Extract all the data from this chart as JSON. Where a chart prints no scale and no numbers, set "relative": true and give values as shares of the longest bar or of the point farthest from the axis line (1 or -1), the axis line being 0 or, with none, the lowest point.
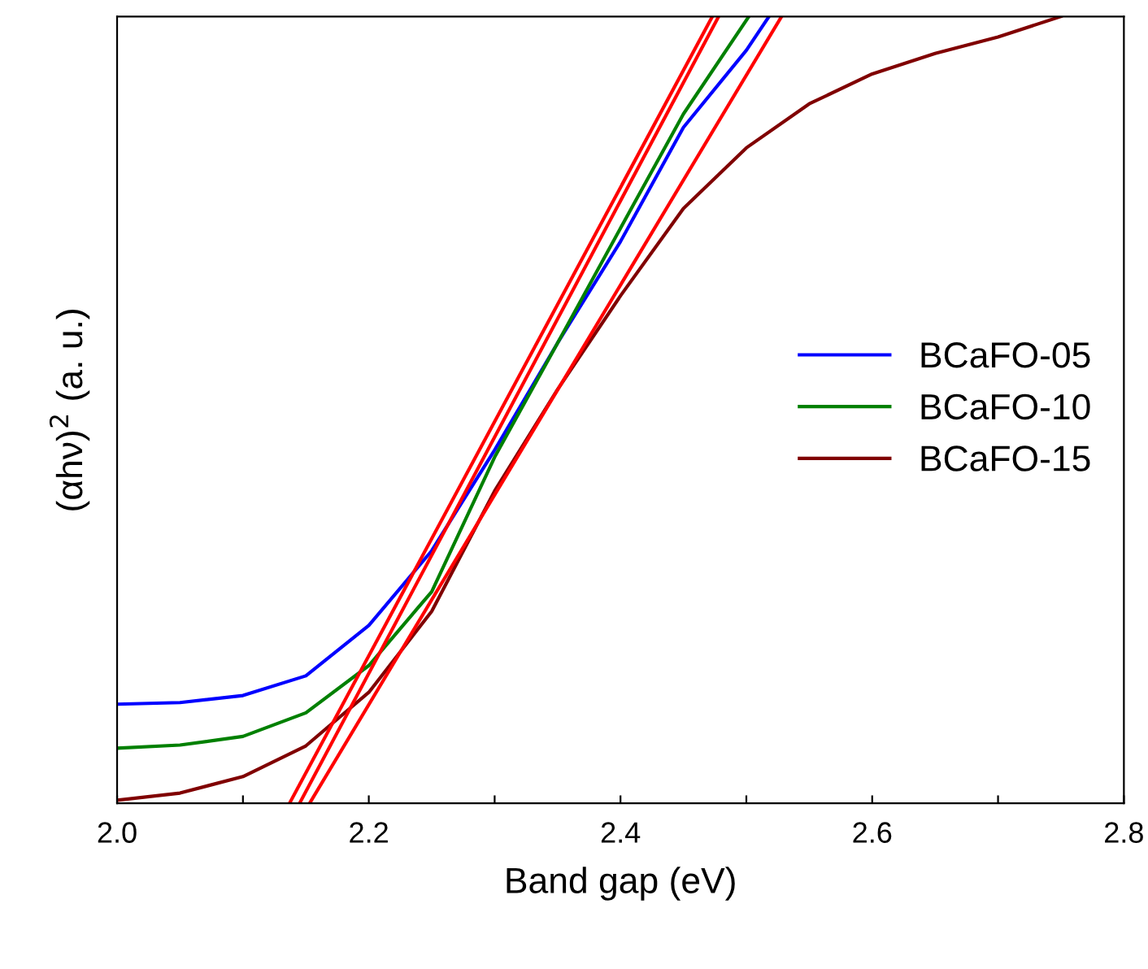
{
  "chart_data": {
    "type": "line",
    "xlabel": "Band gap (eV)",
    "ylabel": "(αhν)$^{2}$ (a. u.)",
    "relative": true,
    "xlim": [
      2.0,
      2.8
    ],
    "xticks": [
      {
        "value": 2.0,
        "label": "2.0"
      },
      {
        "value": 2.1,
        "label": null
      },
      2.2,
      {
        "value": 2.3,
        "label": null
      },
      2.4,
      {
        "value": 2.5,
        "label": null
      },
      2.6,
      {
        "value": 2.7,
        "label": null
      },
      2.8
    ],
    "legend": "center right",
    "grid": false,
    "series": [
      {
        "name": "BCaFO-05",
        "color": "#0000ff",
        "x": [
          2.0,
          2.05,
          2.1,
          2.15,
          2.2,
          2.25,
          2.3,
          2.35,
          2.4,
          2.45,
          2.5,
          2.518
        ],
        "values": [
          0.126,
          0.128,
          0.137,
          0.162,
          0.226,
          0.321,
          0.449,
          0.585,
          0.714,
          0.859,
          0.957,
          1.0
        ]
      },
      {
        "name": "BCaFO-10",
        "color": "#008000",
        "x": [
          2.0,
          2.05,
          2.1,
          2.15,
          2.2,
          2.25,
          2.3,
          2.35,
          2.4,
          2.45,
          2.502
        ],
        "values": [
          0.07,
          0.074,
          0.085,
          0.115,
          0.175,
          0.269,
          0.44,
          0.585,
          0.731,
          0.876,
          1.0
        ]
      },
      {
        "name": "BCaFO-15",
        "color": "#800000",
        "x": [
          2.0,
          2.05,
          2.1,
          2.15,
          2.2,
          2.25,
          2.3,
          2.35,
          2.4,
          2.45,
          2.5,
          2.55,
          2.6,
          2.65,
          2.7,
          2.75
        ],
        "values": [
          0.004,
          0.013,
          0.034,
          0.073,
          0.141,
          0.244,
          0.397,
          0.526,
          0.645,
          0.756,
          0.833,
          0.889,
          0.927,
          0.953,
          0.974,
          1.0
        ]
      },
      {
        "color": "#ff0000",
        "x": [
          2.137,
          2.473
        ],
        "values": [
          0,
          1
        ]
      },
      {
        "color": "#ff0000",
        "x": [
          2.145,
          2.478
        ],
        "values": [
          0,
          1
        ]
      },
      {
        "color": "#ff0000",
        "x": [
          2.153,
          2.528
        ],
        "values": [
          0,
          1
        ]
      }
    ]
  }
}
